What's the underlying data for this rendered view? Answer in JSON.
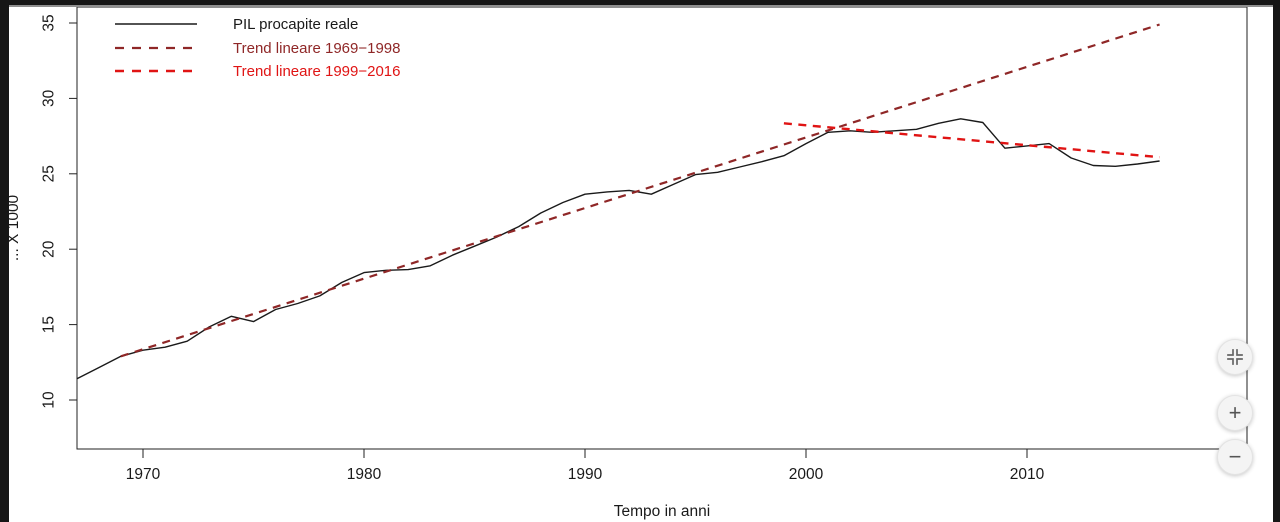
{
  "window": {
    "edge_color": "#161616",
    "background": "#ffffff"
  },
  "controls": {
    "fit_icon": "fit-view-icon",
    "zoom_in_label": "+",
    "zoom_out_label": "−"
  },
  "chart_data": {
    "type": "line",
    "title": "",
    "xlabel": "Tempo in anni",
    "ylabel": "... X 1000",
    "x_ticks": [
      1970,
      1980,
      1990,
      2000,
      2010
    ],
    "y_ticks": [
      10,
      15,
      20,
      25,
      30,
      35
    ],
    "x_range": [
      1967,
      2020
    ],
    "y_range": [
      6.8,
      36.3
    ],
    "grid": false,
    "legend_position": "top-left",
    "legend": [
      {
        "label": "PIL procapite reale",
        "color": "#1a1a1a",
        "style": "solid"
      },
      {
        "label": "Trend lineare 1969−1998",
        "color": "#8f2727",
        "style": "dashed"
      },
      {
        "label": "Trend lineare 1999−2016",
        "color": "#e01414",
        "style": "dashed"
      }
    ],
    "series": [
      {
        "name": "PIL procapite reale",
        "color": "#1a1a1a",
        "width": 1.4,
        "dash": null,
        "x": [
          1967,
          1968,
          1969,
          1970,
          1971,
          1972,
          1973,
          1974,
          1975,
          1976,
          1977,
          1978,
          1979,
          1980,
          1981,
          1982,
          1983,
          1984,
          1985,
          1986,
          1987,
          1988,
          1989,
          1990,
          1991,
          1992,
          1993,
          1994,
          1995,
          1996,
          1997,
          1998,
          1999,
          2000,
          2001,
          2002,
          2003,
          2004,
          2005,
          2006,
          2007,
          2008,
          2009,
          2010,
          2011,
          2012,
          2013,
          2014,
          2015,
          2016
        ],
        "y": [
          11.4,
          12.15,
          12.9,
          13.3,
          13.5,
          13.9,
          14.85,
          15.55,
          15.2,
          16.0,
          16.4,
          16.9,
          17.8,
          18.45,
          18.6,
          18.65,
          18.9,
          19.6,
          20.2,
          20.8,
          21.5,
          22.4,
          23.1,
          23.65,
          23.8,
          23.9,
          23.65,
          24.3,
          24.95,
          25.1,
          25.45,
          25.8,
          26.2,
          27.0,
          27.75,
          27.85,
          27.75,
          27.85,
          27.95,
          28.35,
          28.65,
          28.4,
          26.7,
          26.85,
          27.0,
          26.05,
          25.55,
          25.5,
          25.65,
          25.85
        ]
      },
      {
        "name": "Trend lineare 1969−1998",
        "color": "#8f2727",
        "width": 2.2,
        "dash": [
          8,
          6.5
        ],
        "x": [
          1969,
          2016
        ],
        "y": [
          12.9,
          34.9
        ]
      },
      {
        "name": "Trend lineare 1999−2016",
        "color": "#e01414",
        "width": 2.4,
        "dash": [
          8,
          6.5
        ],
        "x": [
          1999,
          2016
        ],
        "y": [
          28.35,
          26.1
        ]
      }
    ]
  }
}
